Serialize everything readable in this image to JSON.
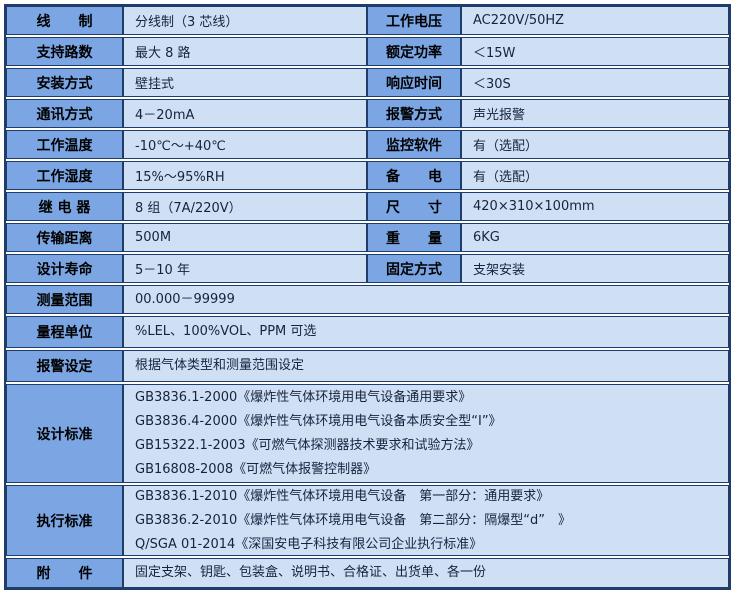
{
  "colors": {
    "label_bg": "#7ba6e3",
    "value_bg": "#cfe0f5",
    "border": "#1e3d6b",
    "page_bg": "#ffffff",
    "label_text": "#000000",
    "value_text": "#16233f"
  },
  "spec_table": {
    "pair_rows": [
      {
        "left_label": "线　　制",
        "left_value": "分线制（3 芯线）",
        "right_label": "工作电压",
        "right_value": "AC220V/50HZ"
      },
      {
        "left_label": "支持路数",
        "left_value": "最大 8 路",
        "right_label": "额定功率",
        "right_value": "＜15W"
      },
      {
        "left_label": "安装方式",
        "left_value": "壁挂式",
        "right_label": "响应时间",
        "right_value": "＜30S"
      },
      {
        "left_label": "通讯方式",
        "left_value": "4－20mA",
        "right_label": "报警方式",
        "right_value": "声光报警"
      },
      {
        "left_label": "工作温度",
        "left_value": "-10℃～+40℃",
        "right_label": "监控软件",
        "right_value": "有（选配）"
      },
      {
        "left_label": "工作湿度",
        "left_value": "15%～95%RH",
        "right_label": "备　　电",
        "right_value": "有（选配）"
      },
      {
        "left_label": "继 电 器",
        "left_value": "8 组（7A/220V）",
        "right_label": "尺　　寸",
        "right_value": "420×310×100mm"
      },
      {
        "left_label": "传输距离",
        "left_value": "500M",
        "right_label": "重　　量",
        "right_value": "6KG"
      },
      {
        "left_label": "设计寿命",
        "left_value": "5－10 年",
        "right_label": "固定方式",
        "right_value": "支架安装"
      }
    ],
    "full_rows": [
      {
        "label": "测量范围",
        "lines": [
          "00.000－99999"
        ]
      },
      {
        "label": "量程单位",
        "lines": [
          "%LEL、100%VOL、PPM 可选"
        ]
      },
      {
        "label": "报警设定",
        "lines": [
          "根据气体类型和测量范围设定"
        ]
      },
      {
        "label": "设计标准",
        "lines": [
          "GB3836.1-2000《爆炸性气体环境用电气设备通用要求》",
          "GB3836.4-2000《爆炸性气体环境用电气设备本质安全型“Ⅰ”》",
          "GB15322.1-2003《可燃气体探测器技术要求和试验方法》",
          "GB16808-2008《可燃气体报警控制器》"
        ]
      },
      {
        "label": "执行标准",
        "lines": [
          "GB3836.1-2010《爆炸性气体环境用电气设备　第一部分：通用要求》",
          "GB3836.2-2010《爆炸性气体环境用电气设备　第二部分：隔爆型“d”　》",
          "Q/SGA 01-2014《深国安电子科技有限公司企业执行标准》"
        ]
      },
      {
        "label": "附　　件",
        "lines": [
          "固定支架、钥匙、包装盒、说明书、合格证、出货单、各一份"
        ]
      }
    ]
  }
}
